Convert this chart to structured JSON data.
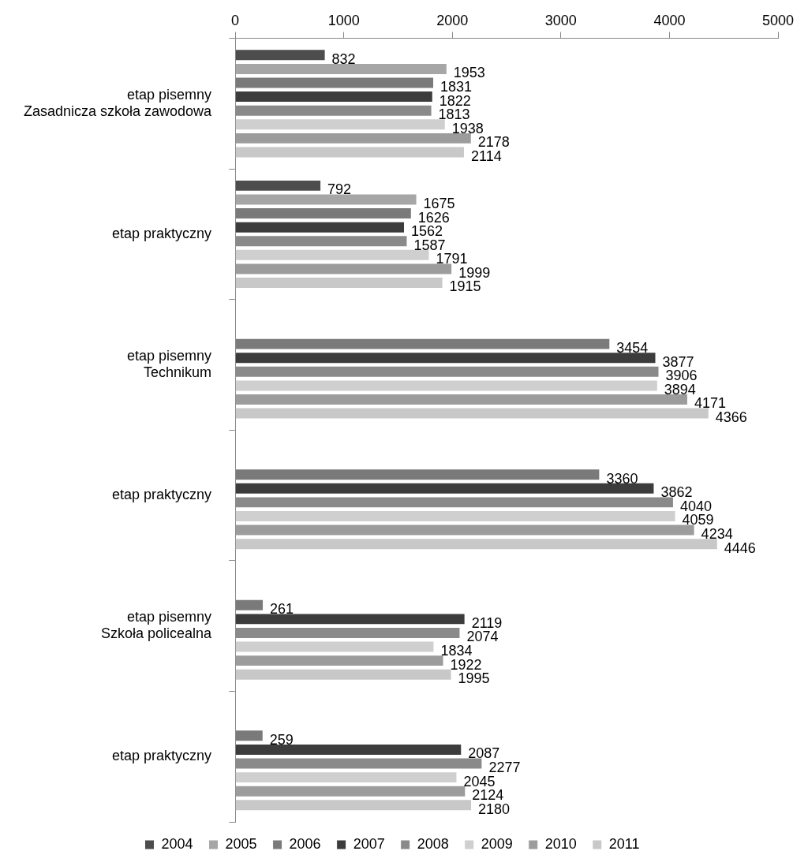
{
  "chart_data": {
    "type": "bar",
    "orientation": "horizontal",
    "categories": [
      "etap pisemny\nZasadnicza szkoła zawodowa",
      "etap praktyczny",
      "etap pisemny\nTechnikum",
      "etap praktyczny",
      "etap pisemny\nSzkoła policealna",
      "etap praktyczny"
    ],
    "series": [
      {
        "name": "2004",
        "color": "#4d4d4d",
        "values": [
          832,
          792,
          null,
          null,
          null,
          null
        ]
      },
      {
        "name": "2005",
        "color": "#a6a6a6",
        "values": [
          1953,
          1675,
          null,
          null,
          null,
          null
        ]
      },
      {
        "name": "2006",
        "color": "#7a7a7a",
        "values": [
          1831,
          1626,
          3454,
          3360,
          261,
          259
        ]
      },
      {
        "name": "2007",
        "color": "#3c3c3c",
        "values": [
          1822,
          1562,
          3877,
          3862,
          2119,
          2087
        ]
      },
      {
        "name": "2008",
        "color": "#8a8a8a",
        "values": [
          1813,
          1587,
          3906,
          4040,
          2074,
          2277
        ]
      },
      {
        "name": "2009",
        "color": "#cfcfcf",
        "values": [
          1938,
          1791,
          3894,
          4059,
          1834,
          2045
        ]
      },
      {
        "name": "2010",
        "color": "#9c9c9c",
        "values": [
          2178,
          1999,
          4171,
          4234,
          1922,
          2124
        ]
      },
      {
        "name": "2011",
        "color": "#c8c8c8",
        "values": [
          2114,
          1915,
          4366,
          4446,
          1995,
          2180
        ]
      }
    ],
    "xlim": [
      0,
      5000
    ],
    "xticks": [
      0,
      1000,
      2000,
      3000,
      4000,
      5000
    ],
    "data_labels": true,
    "grid": false,
    "legend": "bottom"
  }
}
